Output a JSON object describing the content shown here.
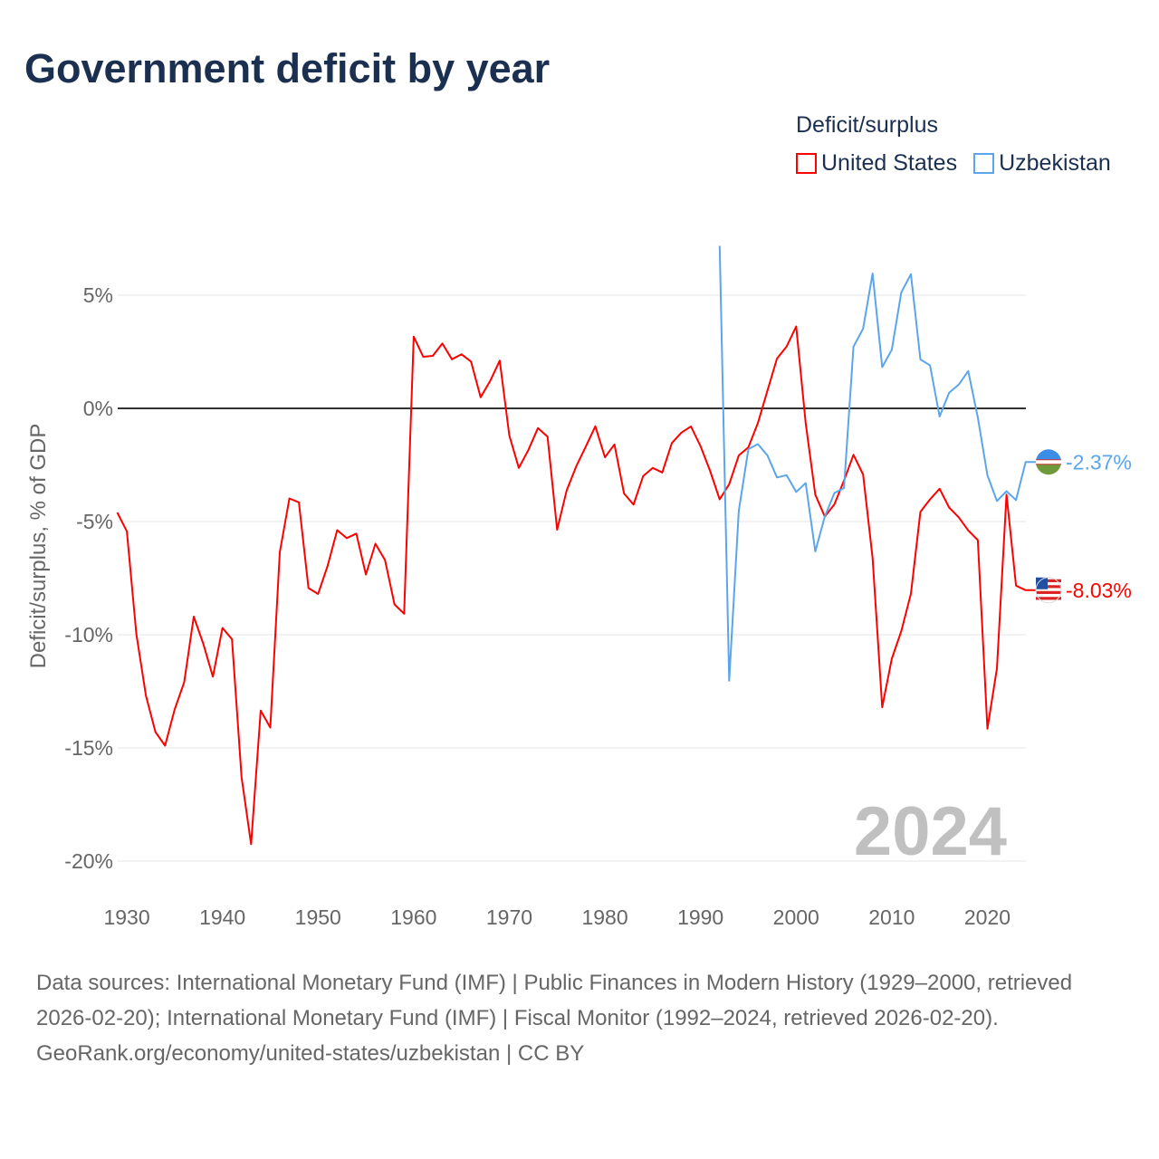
{
  "title": "Government deficit by year",
  "legend": {
    "title": "Deficit/surplus",
    "items": [
      {
        "label": "United States",
        "color": "#ff0000"
      },
      {
        "label": "Uzbekistan",
        "color": "#5aa5eb"
      }
    ]
  },
  "year_watermark": "2024",
  "footer": {
    "sources": "Data sources: International Monetary Fund (IMF) | Public Finances in Modern History (1929–2000, retrieved 2026-02-20); International Monetary Fund (IMF) | Fiscal Monitor (1992–2024, retrieved 2026-02-20).",
    "link": "GeoRank.org/economy/united-states/uzbekistan | CC BY"
  },
  "chart_data": {
    "type": "line",
    "title": "Government deficit by year",
    "xlabel": "",
    "ylabel": "Deficit/surplus, % of GDP",
    "xlim": [
      1929,
      2024
    ],
    "ylim": [
      -21,
      7.5
    ],
    "x_ticks": [
      1930,
      1940,
      1950,
      1960,
      1970,
      1980,
      1990,
      2000,
      2010,
      2020
    ],
    "x_tick_labels": [
      "1930",
      "1940",
      "1950",
      "1960",
      "1970",
      "1980",
      "1990",
      "2000",
      "2010",
      "2020"
    ],
    "y_ticks": [
      5,
      0,
      -5,
      -10,
      -15,
      -20
    ],
    "y_tick_labels": [
      "5%",
      "0%",
      "-5%",
      "-10%",
      "-15%",
      "-20%"
    ],
    "grid": true,
    "legend_position": "top-right",
    "series": [
      {
        "name": "United States",
        "color": "#ff0000",
        "start_year": 1929,
        "end_label": "-8.03%",
        "values": [
          -4.6,
          -5.43,
          -9.97,
          -12.7,
          -14.3,
          -14.9,
          -13.3,
          -12.1,
          -9.2,
          -10.4,
          -11.85,
          -9.7,
          -10.2,
          -16.3,
          -19.25,
          -13.35,
          -14.1,
          -6.36,
          -3.98,
          -4.15,
          -7.94,
          -8.2,
          -6.96,
          -5.38,
          -5.73,
          -5.53,
          -7.34,
          -5.98,
          -6.7,
          -8.66,
          -9.07,
          3.17,
          2.28,
          2.32,
          2.87,
          2.17,
          2.39,
          2.07,
          0.49,
          1.21,
          2.11,
          -1.2,
          -2.63,
          -1.83,
          -0.87,
          -1.25,
          -5.36,
          -3.63,
          -2.56,
          -1.69,
          -0.79,
          -2.16,
          -1.59,
          -3.76,
          -4.25,
          -2.99,
          -2.63,
          -2.83,
          -1.53,
          -1.07,
          -0.8,
          -1.67,
          -2.76,
          -4.02,
          -3.35,
          -2.08,
          -1.72,
          -0.65,
          0.79,
          2.2,
          2.73,
          3.62,
          -0.65,
          -3.81,
          -4.78,
          -4.24,
          -3.19,
          -2.05,
          -2.92,
          -6.61,
          -13.2,
          -11.06,
          -9.84,
          -8.19,
          -4.57,
          -4.02,
          -3.55,
          -4.38,
          -4.81,
          -5.39,
          -5.82,
          -14.15,
          -11.49,
          -3.81,
          -7.83,
          -8.03
        ]
      },
      {
        "name": "Uzbekistan",
        "color": "#5aa5eb",
        "start_year": 1992,
        "end_label": "-2.37%",
        "values": [
          7.18,
          -12.03,
          -4.53,
          -1.8,
          -1.58,
          -2.08,
          -3.05,
          -2.95,
          -3.69,
          -3.3,
          -6.32,
          -4.78,
          -3.74,
          -3.52,
          2.73,
          3.52,
          5.96,
          1.82,
          2.59,
          5.13,
          5.93,
          2.16,
          1.9,
          -0.36,
          0.69,
          1.05,
          1.65,
          -0.4,
          -2.95,
          -4.09,
          -3.66,
          -4.05,
          -2.37
        ]
      }
    ]
  }
}
